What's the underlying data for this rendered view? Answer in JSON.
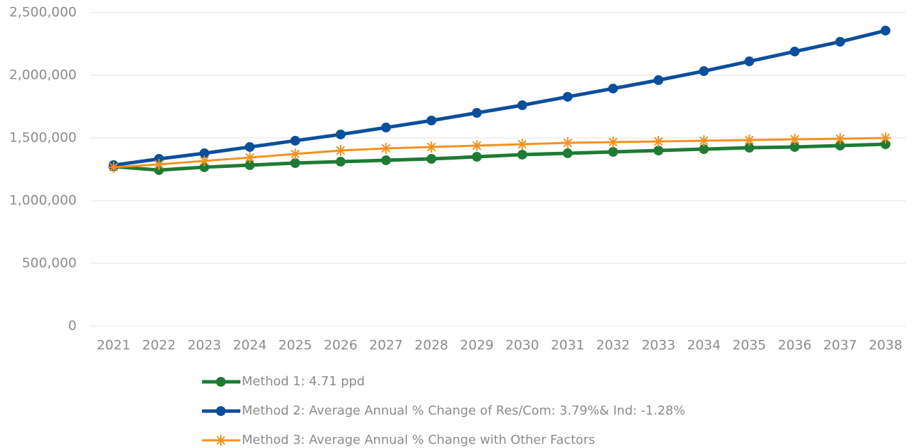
{
  "chart_data": {
    "type": "line",
    "categories": [
      "2021",
      "2022",
      "2023",
      "2024",
      "2025",
      "2026",
      "2027",
      "2028",
      "2029",
      "2030",
      "2031",
      "2032",
      "2033",
      "2034",
      "2035",
      "2036",
      "2037",
      "2038"
    ],
    "series": [
      {
        "name": "Method 1: 4.71 ppd",
        "color": "#1e7b34",
        "marker": "circle",
        "values": [
          1272000,
          1244000,
          1267000,
          1283000,
          1300000,
          1311000,
          1322000,
          1333000,
          1350000,
          1367000,
          1378000,
          1389000,
          1400000,
          1411000,
          1422000,
          1428000,
          1439000,
          1450000
        ]
      },
      {
        "name": "Method 2: Average Annual % Change of Res/Com: 3.79%& Ind: -1.28%",
        "color": "#0b4f9c",
        "marker": "circle",
        "values": [
          1283000,
          1333000,
          1378000,
          1428000,
          1478000,
          1528000,
          1583000,
          1639000,
          1700000,
          1761000,
          1828000,
          1894000,
          1961000,
          2033000,
          2111000,
          2189000,
          2267000,
          2356000
        ]
      },
      {
        "name": "Method 3: Average Annual % Change with Other Factors",
        "color": "#f5911e",
        "marker": "star",
        "values": [
          1267000,
          1289000,
          1317000,
          1344000,
          1372000,
          1400000,
          1417000,
          1428000,
          1439000,
          1450000,
          1461000,
          1467000,
          1472000,
          1478000,
          1483000,
          1489000,
          1494000,
          1500000
        ]
      }
    ],
    "ylim": [
      0,
      2500000
    ],
    "yticks": [
      0,
      {
        "value": 500000,
        "label": "500,000"
      },
      {
        "value": 1000000,
        "label": "1,000,000"
      },
      {
        "value": 1500000,
        "label": "1,500,000"
      },
      {
        "value": 2000000,
        "label": "2,000,000"
      },
      {
        "value": 2500000,
        "label": "2,500,000"
      }
    ],
    "grid": true,
    "legend": "bottom"
  }
}
